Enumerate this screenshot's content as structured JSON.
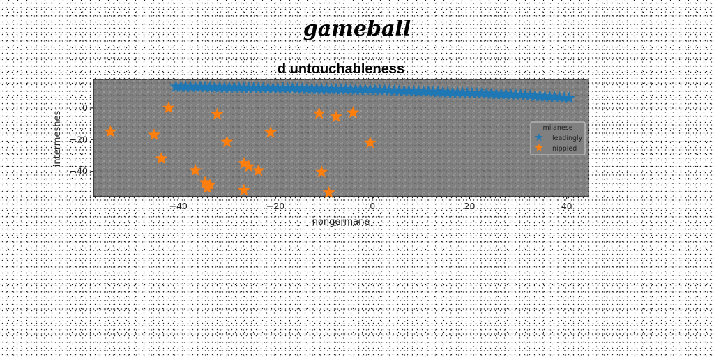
{
  "figure": {
    "suptitle": "gameball"
  },
  "colors": {
    "plot_background": "#808080",
    "series_leadingly": "#1f77b4",
    "series_nippled": "#ff7f0e"
  },
  "chart_data": {
    "type": "scatter",
    "title": "d untouchableness",
    "xlabel": "nongermane",
    "ylabel": "intermeshes",
    "xlim": [
      -57.5,
      44.5
    ],
    "ylim": [
      -56,
      18
    ],
    "xticks": [
      -40,
      -20,
      0,
      20,
      40
    ],
    "yticks": [
      0,
      -20,
      -40
    ],
    "grid": false,
    "legend": {
      "title": "milanese",
      "placement": "right",
      "entries": [
        "leadingly",
        "nippled"
      ]
    },
    "series": [
      {
        "name": "leadingly",
        "marker": "star",
        "x": [
          -40.5,
          -39.5,
          -38.5,
          -37.5,
          -36.5,
          -35.5,
          -34.5,
          -33.5,
          -32.5,
          -31.5,
          -30.5,
          -29.5,
          -28.5,
          -27.5,
          -26.5,
          -25.5,
          -24.5,
          -23.5,
          -22.5,
          -21.5,
          -20.5,
          -19.5,
          -18.5,
          -17.5,
          -16.5,
          -15.5,
          -14.5,
          -13.5,
          -12.5,
          -11.5,
          -10.5,
          -9.5,
          -8.5,
          -7.5,
          -6.5,
          -5.5,
          -4.5,
          -3.5,
          -2.5,
          -1.5,
          -0.5,
          0.5,
          1.5,
          2.5,
          3.5,
          4.5,
          5.5,
          6.5,
          7.5,
          8.5,
          9.5,
          10.5,
          11.5,
          12.5,
          13.5,
          14.5,
          15.5,
          16.5,
          17.5,
          18.5,
          19.5,
          20.5,
          21.5,
          22.5,
          23.5,
          24.5,
          25.5,
          26.5,
          27.5,
          28.5,
          29.5,
          30.5,
          31.5,
          32.5,
          33.5,
          34.5,
          35.5,
          36.5,
          37.5,
          38.5,
          39.5,
          40.5
        ],
        "y": [
          13.4,
          13.35,
          13.3,
          13.25,
          13.2,
          13.15,
          13.1,
          13.05,
          13,
          12.95,
          12.9,
          12.85,
          12.8,
          12.75,
          12.7,
          12.65,
          12.6,
          12.55,
          12.5,
          12.45,
          12.4,
          12.35,
          12.3,
          12.25,
          12.2,
          12.15,
          12.1,
          12.05,
          12,
          11.95,
          11.9,
          11.85,
          11.8,
          11.75,
          11.7,
          11.65,
          11.6,
          11.55,
          11.5,
          11.45,
          11.4,
          11.3,
          11.2,
          11.1,
          11,
          10.9,
          10.8,
          10.7,
          10.6,
          10.5,
          10.4,
          10.3,
          10.2,
          10.1,
          10,
          9.9,
          9.8,
          9.7,
          9.6,
          9.5,
          9.4,
          9.3,
          9.2,
          9.1,
          9,
          8.9,
          8.8,
          8.7,
          8.6,
          8.5,
          8.4,
          8.2,
          8,
          7.8,
          7.6,
          7.4,
          7.2,
          7,
          6.8,
          6.6,
          6.4,
          6.2
        ]
      },
      {
        "name": "nippled",
        "marker": "star",
        "x": [
          -54,
          -42,
          -45,
          -43.5,
          -36.5,
          -32,
          -30,
          -34.5,
          -34,
          -33.5,
          -26.5,
          -25.5,
          -23.5,
          -26.5,
          -21,
          -11,
          -10.5,
          -9,
          -7.5,
          -4,
          -0.5
        ],
        "y": [
          -15,
          0,
          -17,
          -32,
          -39.5,
          -4,
          -21.5,
          -47,
          -50.5,
          -48.5,
          -35,
          -37,
          -39.5,
          -52,
          -15.5,
          -3.5,
          -40.5,
          -53.5,
          -5.5,
          -3,
          -22
        ]
      }
    ]
  }
}
